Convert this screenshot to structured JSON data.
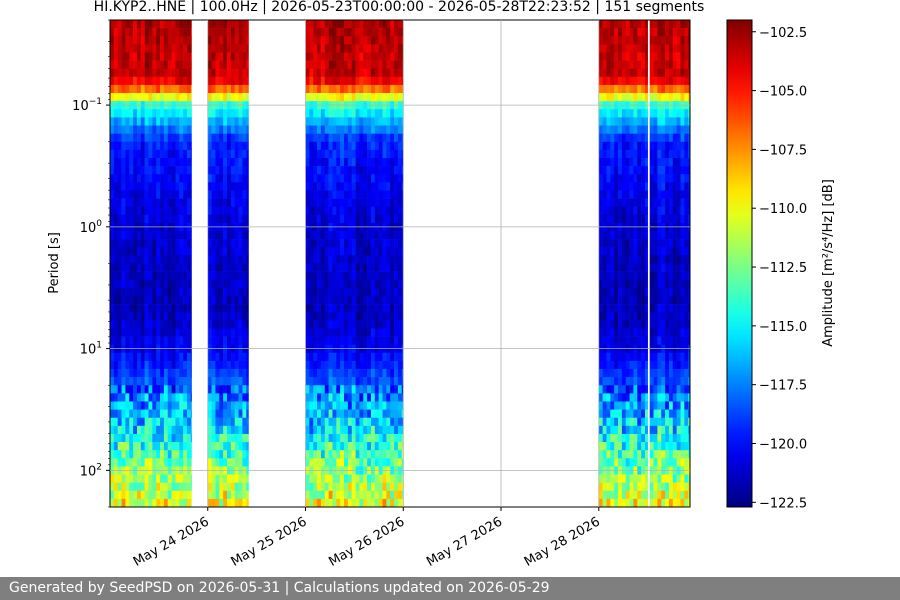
{
  "chart_data": {
    "type": "heatmap",
    "title": "HI.KYP2..HNE | 100.0Hz | 2026-05-23T00:00:00 - 2026-05-28T22:23:52 | 151 segments",
    "xlabel": "",
    "ylabel": "Period [s]",
    "colorbar_label": "Amplitude [m²/s⁴/Hz] [dB]",
    "colormap": "jet",
    "x_range": [
      "2026-05-23T00:00:00",
      "2026-05-28T22:23:52"
    ],
    "x_ticks": [
      {
        "date": "2026-05-24",
        "label": "May 24 2026"
      },
      {
        "date": "2026-05-25",
        "label": "May 25 2026"
      },
      {
        "date": "2026-05-26",
        "label": "May 26 2026"
      },
      {
        "date": "2026-05-27",
        "label": "May 27 2026"
      },
      {
        "date": "2026-05-28",
        "label": "May 28 2026"
      }
    ],
    "y_scale": "log",
    "y_inverted": true,
    "y_range": [
      0.02,
      200
    ],
    "y_ticks": [
      {
        "value": 0.1,
        "base": "10",
        "exp": "−1"
      },
      {
        "value": 1,
        "base": "10",
        "exp": "0"
      },
      {
        "value": 10,
        "base": "10",
        "exp": "1"
      },
      {
        "value": 100,
        "base": "10",
        "exp": "2"
      }
    ],
    "color_range": [
      -122.7,
      -102.0
    ],
    "colorbar_ticks": [
      "−102.5",
      "−105.0",
      "−107.5",
      "−110.0",
      "−112.5",
      "−115.0",
      "−117.5",
      "−120.0",
      "−122.5"
    ],
    "colorbar_tick_values": [
      -102.5,
      -105.0,
      -107.5,
      -110.0,
      -112.5,
      -115.0,
      -117.5,
      -120.0,
      -122.5
    ],
    "grid": true,
    "data_segments": [
      {
        "start": "2026-05-23T00:00:00",
        "end": "2026-05-23T20:00:00"
      },
      {
        "start": "2026-05-24T00:00:00",
        "end": "2026-05-24T10:00:00"
      },
      {
        "start": "2026-05-25T00:00:00",
        "end": "2026-05-26T00:00:00"
      },
      {
        "start": "2026-05-28T00:00:00",
        "end": "2026-05-28T12:00:00"
      },
      {
        "start": "2026-05-28T12:30:00",
        "end": "2026-05-28T22:23:52"
      }
    ],
    "spectral_profile": [
      {
        "period": 0.02,
        "db": -103
      },
      {
        "period": 0.06,
        "db": -103.5
      },
      {
        "period": 0.08,
        "db": -108
      },
      {
        "period": 0.1,
        "db": -114
      },
      {
        "period": 0.2,
        "db": -119.5
      },
      {
        "period": 1,
        "db": -121
      },
      {
        "period": 5,
        "db": -121.5
      },
      {
        "period": 10,
        "db": -120.5
      },
      {
        "period": 30,
        "db": -117
      },
      {
        "period": 80,
        "db": -113
      },
      {
        "period": 200,
        "db": -110
      }
    ]
  },
  "footer": {
    "text": "Generated by SeedPSD on 2026-05-31 | Calculations updated on 2026-05-29"
  }
}
